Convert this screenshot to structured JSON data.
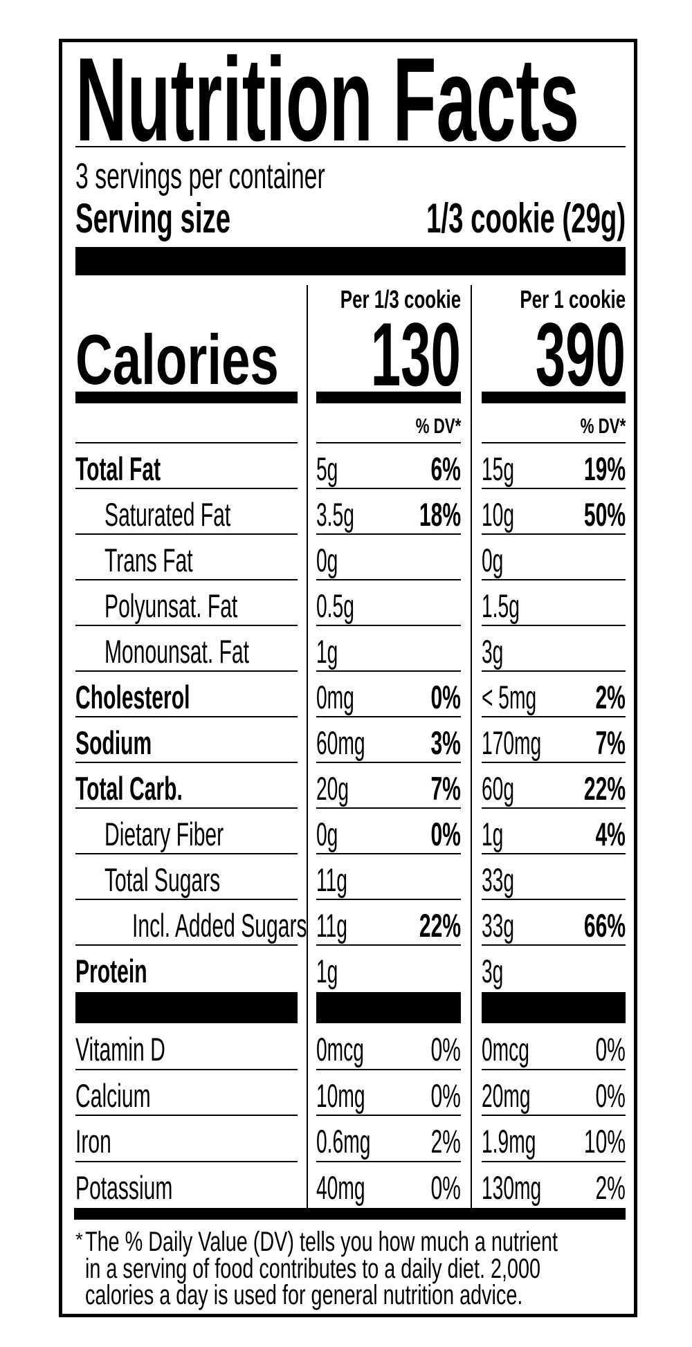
{
  "title": "Nutrition Facts",
  "servings_per_container": "3 servings per container",
  "serving_size_label": "Serving size",
  "serving_size_value": "1/3 cookie (29g)",
  "calories_label": "Calories",
  "columns": [
    {
      "header": "Per 1/3 cookie",
      "calories": "130",
      "dv_header": "% DV*"
    },
    {
      "header": "Per 1 cookie",
      "calories": "390",
      "dv_header": "% DV*"
    }
  ],
  "nutrients": [
    {
      "label": "Total Fat",
      "bold": true,
      "indent": 0,
      "c1": "5g",
      "d1": "6%",
      "c2": "15g",
      "d2": "19%"
    },
    {
      "label": "Saturated Fat",
      "bold": false,
      "indent": 1,
      "c1": "3.5g",
      "d1": "18%",
      "c2": "10g",
      "d2": "50%"
    },
    {
      "label": "Trans Fat",
      "bold": false,
      "indent": 1,
      "c1": "0g",
      "d1": "",
      "c2": "0g",
      "d2": ""
    },
    {
      "label": "Polyunsat. Fat",
      "bold": false,
      "indent": 1,
      "c1": "0.5g",
      "d1": "",
      "c2": "1.5g",
      "d2": ""
    },
    {
      "label": "Monounsat. Fat",
      "bold": false,
      "indent": 1,
      "c1": "1g",
      "d1": "",
      "c2": "3g",
      "d2": ""
    },
    {
      "label": "Cholesterol",
      "bold": true,
      "indent": 0,
      "c1": "0mg",
      "d1": "0%",
      "c2": "< 5mg",
      "d2": "2%"
    },
    {
      "label": "Sodium",
      "bold": true,
      "indent": 0,
      "c1": "60mg",
      "d1": "3%",
      "c2": "170mg",
      "d2": "7%"
    },
    {
      "label": "Total Carb.",
      "bold": true,
      "indent": 0,
      "c1": "20g",
      "d1": "7%",
      "c2": "60g",
      "d2": "22%"
    },
    {
      "label": "Dietary Fiber",
      "bold": false,
      "indent": 1,
      "c1": "0g",
      "d1": "0%",
      "c2": "1g",
      "d2": "4%"
    },
    {
      "label": "Total Sugars",
      "bold": false,
      "indent": 1,
      "c1": "11g",
      "d1": "",
      "c2": "33g",
      "d2": ""
    },
    {
      "label": "Incl. Added Sugars",
      "bold": false,
      "indent": 2,
      "c1": "11g",
      "d1": "22%",
      "c2": "33g",
      "d2": "66%"
    },
    {
      "label": "Protein",
      "bold": true,
      "indent": 0,
      "c1": "1g",
      "d1": "",
      "c2": "3g",
      "d2": ""
    }
  ],
  "vitamins": [
    {
      "label": "Vitamin D",
      "c1": "0mcg",
      "d1": "0%",
      "c2": "0mcg",
      "d2": "0%"
    },
    {
      "label": "Calcium",
      "c1": "10mg",
      "d1": "0%",
      "c2": "20mg",
      "d2": "0%"
    },
    {
      "label": "Iron",
      "c1": "0.6mg",
      "d1": "2%",
      "c2": "1.9mg",
      "d2": "10%"
    },
    {
      "label": "Potassium",
      "c1": "40mg",
      "d1": "0%",
      "c2": "130mg",
      "d2": "2%"
    }
  ],
  "footnote": {
    "asterisk": "*",
    "lines": [
      "The % Daily Value (DV) tells you how much a nutrient",
      "in a serving of food contributes to a daily diet. 2,000",
      "calories a day is used for general nutrition advice."
    ]
  }
}
